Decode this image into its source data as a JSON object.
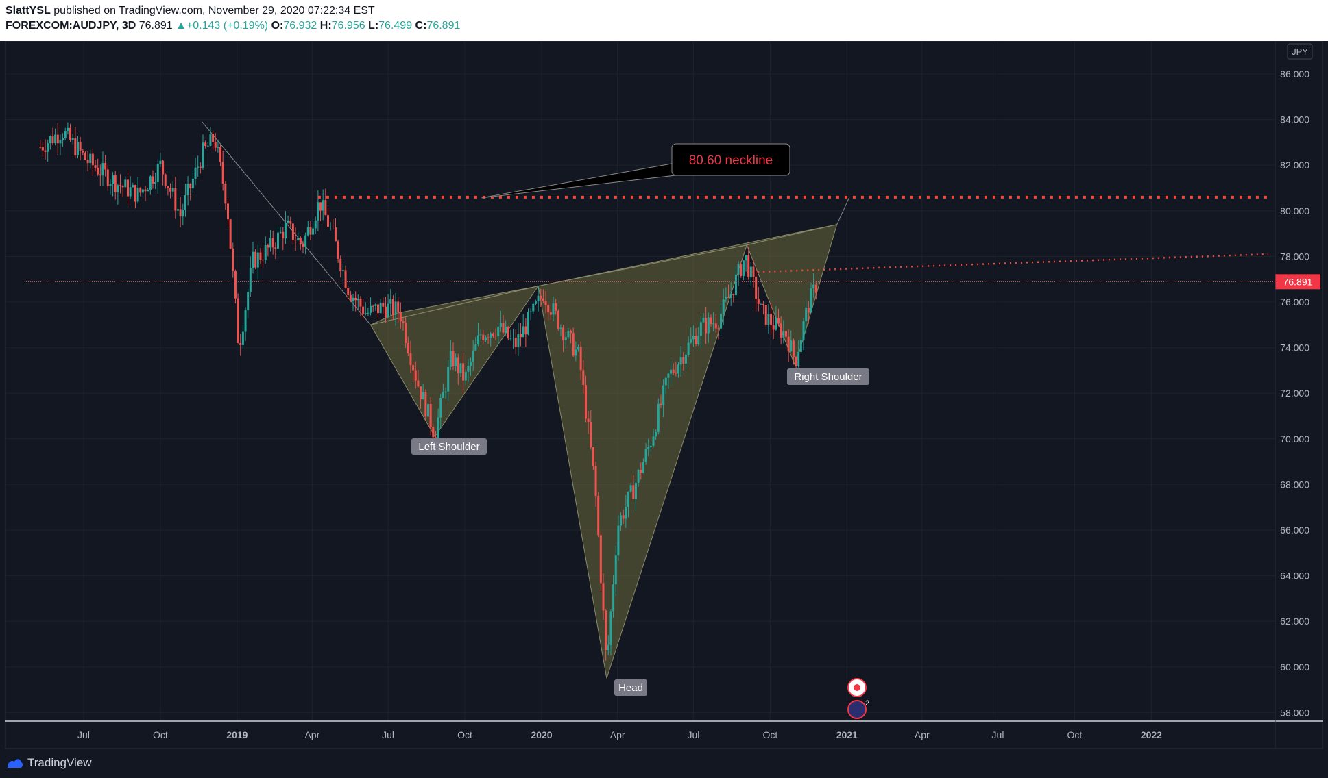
{
  "header": {
    "author": "SlattYSL",
    "published_text": "published on TradingView.com, November 29, 2020 07:22:34 EST",
    "symbol": "FOREXCOM:AUDJPY, 3D",
    "last": "76.891",
    "change": "+0.143 (+0.19%)",
    "open_label": "O:",
    "open": "76.932",
    "high_label": "H:",
    "high": "76.956",
    "low_label": "L:",
    "low": "76.499",
    "close_label": "C:",
    "close": "76.891"
  },
  "footer": {
    "brand": "TradingView"
  },
  "chart_data": {
    "type": "candlestick",
    "title": "FOREXCOM:AUDJPY, 3D",
    "currency": "JPY",
    "last_price": 76.891,
    "x_tick_labels": [
      "Jul",
      "Oct",
      "2019",
      "Apr",
      "Jul",
      "Oct",
      "2020",
      "Apr",
      "Jul",
      "Oct",
      "2021",
      "Apr",
      "Jul",
      "Oct",
      "2022"
    ],
    "x_tick_bold": [
      false,
      false,
      true,
      false,
      false,
      false,
      true,
      false,
      false,
      false,
      true,
      false,
      false,
      false,
      true
    ],
    "y_tick_labels": [
      "86.000",
      "84.000",
      "82.000",
      "80.000",
      "78.000",
      "76.000",
      "74.000",
      "72.000",
      "70.000",
      "68.000",
      "66.000",
      "64.000",
      "62.000",
      "60.000",
      "58.000"
    ],
    "ylim": [
      57.5,
      87.5
    ],
    "grid": true,
    "price_path": [
      [
        "2018-05-10",
        82.8
      ],
      [
        "2018-06-05",
        83.5
      ],
      [
        "2018-07-05",
        82.2
      ],
      [
        "2018-08-10",
        81.2
      ],
      [
        "2018-09-05",
        80.7
      ],
      [
        "2018-10-01",
        82.0
      ],
      [
        "2018-10-25",
        79.8
      ],
      [
        "2018-11-20",
        82.5
      ],
      [
        "2018-12-05",
        83.2
      ],
      [
        "2018-12-20",
        80.3
      ],
      [
        "2019-01-03",
        74.0
      ],
      [
        "2019-01-20",
        77.8
      ],
      [
        "2019-02-10",
        78.4
      ],
      [
        "2019-03-01",
        79.3
      ],
      [
        "2019-03-20",
        78.5
      ],
      [
        "2019-04-10",
        80.4
      ],
      [
        "2019-04-25",
        79.0
      ],
      [
        "2019-05-15",
        76.5
      ],
      [
        "2019-06-05",
        75.5
      ],
      [
        "2019-06-25",
        75.8
      ],
      [
        "2019-07-15",
        75.6
      ],
      [
        "2019-08-05",
        72.5
      ],
      [
        "2019-08-26",
        70.2
      ],
      [
        "2019-09-15",
        73.6
      ],
      [
        "2019-10-01",
        72.6
      ],
      [
        "2019-10-20",
        74.6
      ],
      [
        "2019-11-10",
        74.9
      ],
      [
        "2019-11-30",
        74.1
      ],
      [
        "2019-12-20",
        75.4
      ],
      [
        "2020-01-03",
        76.4
      ],
      [
        "2020-01-25",
        74.9
      ],
      [
        "2020-02-15",
        73.6
      ],
      [
        "2020-03-05",
        68.0
      ],
      [
        "2020-03-19",
        60.0
      ],
      [
        "2020-04-01",
        66.2
      ],
      [
        "2020-04-20",
        67.8
      ],
      [
        "2020-05-10",
        69.8
      ],
      [
        "2020-06-01",
        72.7
      ],
      [
        "2020-06-20",
        73.8
      ],
      [
        "2020-07-10",
        74.9
      ],
      [
        "2020-07-30",
        75.2
      ],
      [
        "2020-08-15",
        76.4
      ],
      [
        "2020-09-01",
        78.0
      ],
      [
        "2020-09-20",
        75.6
      ],
      [
        "2020-10-05",
        75.0
      ],
      [
        "2020-10-20",
        74.6
      ],
      [
        "2020-10-31",
        73.4
      ],
      [
        "2020-11-15",
        75.8
      ],
      [
        "2020-11-27",
        76.9
      ]
    ],
    "annotations": [
      {
        "text": "80.60 neckline",
        "color": "#f23645"
      },
      {
        "text": "Left Shoulder"
      },
      {
        "text": "Head"
      },
      {
        "text": "Right Shoulder"
      }
    ],
    "neckline_level": 80.6,
    "colors": {
      "up": "#26a69a",
      "down": "#ef5350",
      "pattern": "#6b6a3c",
      "neckline": "#f5483b"
    },
    "legend": "none"
  }
}
